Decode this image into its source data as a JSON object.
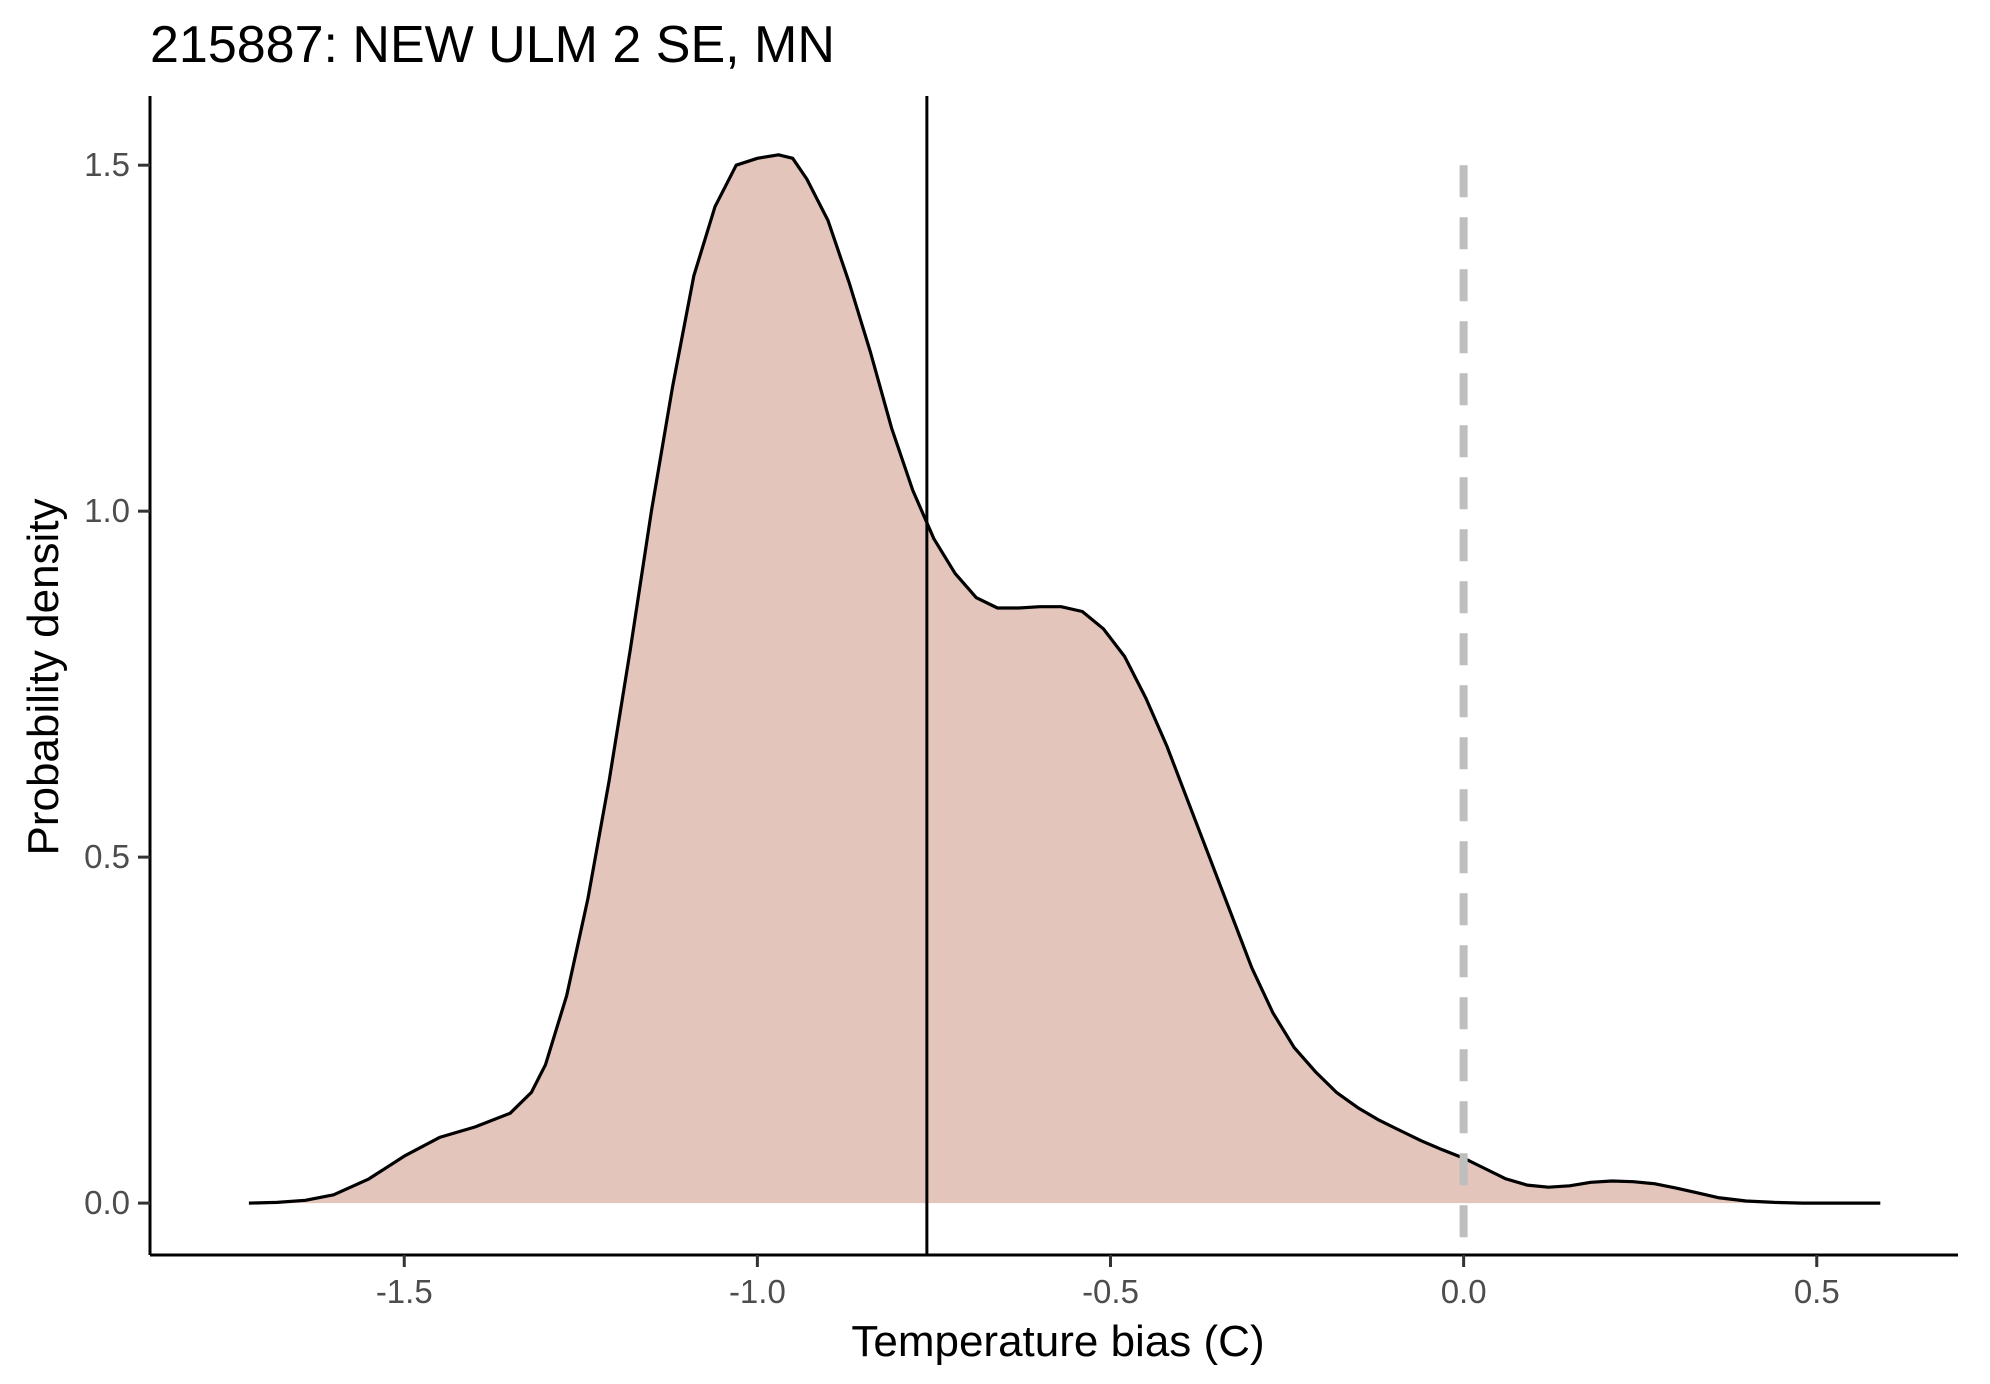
{
  "chart_data": {
    "type": "area",
    "title": "215887: NEW ULM 2 SE, MN",
    "xlabel": "Temperature bias (C)",
    "ylabel": "Probability density",
    "xlim": [
      -1.86,
      0.7
    ],
    "ylim": [
      -0.075,
      1.6
    ],
    "x_ticks": [
      -1.5,
      -1.0,
      -0.5,
      0.0,
      0.5
    ],
    "x_tick_labels": [
      "-1.5",
      "-1.0",
      "-0.5",
      "0.0",
      "0.5"
    ],
    "y_ticks": [
      0.0,
      0.5,
      1.0,
      1.5
    ],
    "y_tick_labels": [
      "0.0",
      "0.5",
      "1.0",
      "1.5"
    ],
    "grid": false,
    "fill_color": "#e3c5bc",
    "line_color": "#000000",
    "reference_lines": [
      {
        "x": -0.76,
        "style": "solid",
        "color": "#000000"
      },
      {
        "x": 0.0,
        "style": "dashed",
        "color": "#bebebe"
      }
    ],
    "series": [
      {
        "x": [
          -1.72,
          -1.68,
          -1.64,
          -1.6,
          -1.55,
          -1.5,
          -1.45,
          -1.4,
          -1.35,
          -1.32,
          -1.3,
          -1.27,
          -1.24,
          -1.21,
          -1.18,
          -1.15,
          -1.12,
          -1.09,
          -1.06,
          -1.03,
          -1.0,
          -0.97,
          -0.95,
          -0.93,
          -0.9,
          -0.87,
          -0.84,
          -0.81,
          -0.78,
          -0.75,
          -0.72,
          -0.69,
          -0.66,
          -0.63,
          -0.6,
          -0.57,
          -0.54,
          -0.51,
          -0.48,
          -0.45,
          -0.42,
          -0.39,
          -0.36,
          -0.33,
          -0.3,
          -0.27,
          -0.24,
          -0.21,
          -0.18,
          -0.15,
          -0.12,
          -0.09,
          -0.06,
          -0.03,
          0.0,
          0.03,
          0.06,
          0.09,
          0.12,
          0.15,
          0.18,
          0.21,
          0.24,
          0.27,
          0.3,
          0.33,
          0.36,
          0.4,
          0.44,
          0.48,
          0.52,
          0.56,
          0.59
        ],
        "y": [
          0.0,
          0.001,
          0.004,
          0.012,
          0.035,
          0.068,
          0.095,
          0.11,
          0.13,
          0.16,
          0.2,
          0.3,
          0.44,
          0.61,
          0.8,
          1.0,
          1.18,
          1.34,
          1.44,
          1.5,
          1.51,
          1.515,
          1.51,
          1.48,
          1.42,
          1.33,
          1.23,
          1.12,
          1.03,
          0.96,
          0.91,
          0.875,
          0.86,
          0.86,
          0.862,
          0.862,
          0.855,
          0.83,
          0.79,
          0.73,
          0.66,
          0.58,
          0.5,
          0.42,
          0.34,
          0.275,
          0.225,
          0.19,
          0.16,
          0.138,
          0.12,
          0.105,
          0.09,
          0.077,
          0.065,
          0.05,
          0.035,
          0.026,
          0.023,
          0.025,
          0.03,
          0.032,
          0.031,
          0.028,
          0.022,
          0.015,
          0.008,
          0.003,
          0.001,
          0.0,
          0.0,
          0.0,
          0.0
        ]
      }
    ]
  }
}
